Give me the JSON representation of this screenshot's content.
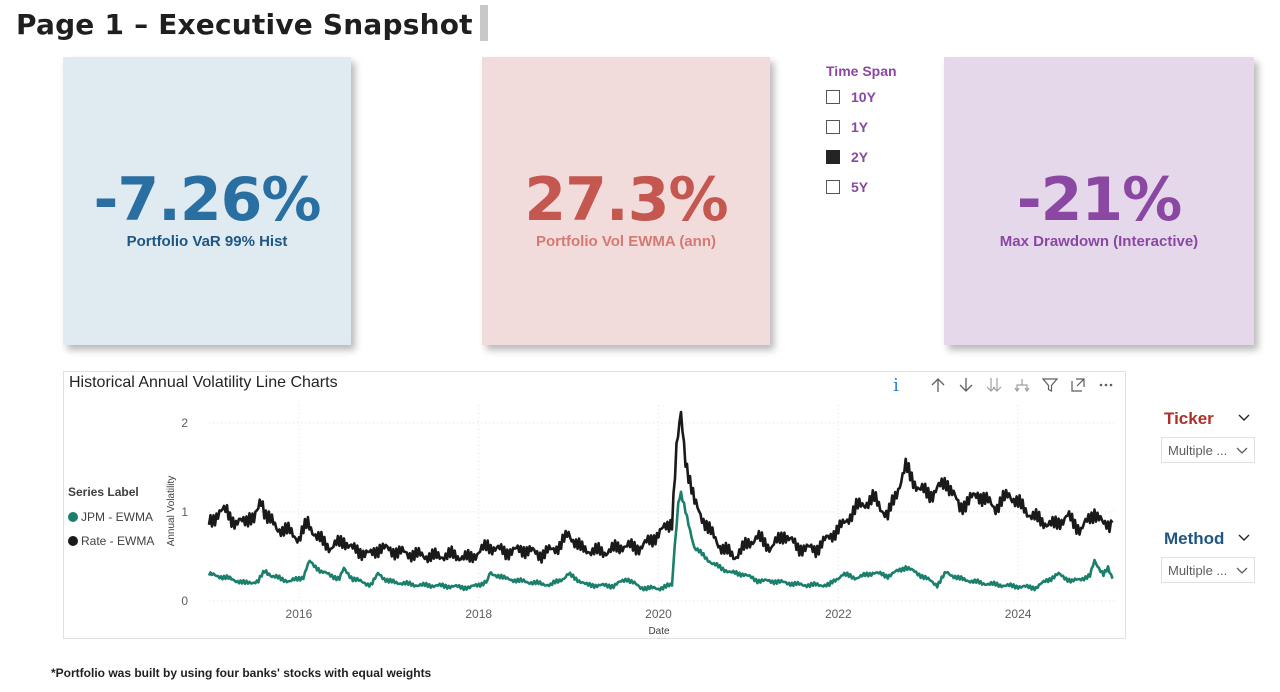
{
  "page": {
    "title": "Page 1 – Executive Snapshot",
    "footnote": "*Portfolio was built by using four banks' stocks with equal weights"
  },
  "kpis": [
    {
      "value": "-7.26%",
      "label": "Portfolio VaR 99% Hist",
      "color": "#2a6fa1",
      "bg": "#dfeaf1"
    },
    {
      "value": "27.3%",
      "label": "Portfolio Vol EWMA (ann)",
      "color": "#c4574f",
      "bg": "#f1dcdb"
    },
    {
      "value": "-21%",
      "label": "Max Drawdown (Interactive)",
      "color": "#8a48a3",
      "bg": "#e5d8eb"
    }
  ],
  "time_span": {
    "title": "Time Span",
    "options": [
      {
        "label": "10Y",
        "checked": false
      },
      {
        "label": "1Y",
        "checked": false
      },
      {
        "label": "2Y",
        "checked": true
      },
      {
        "label": "5Y",
        "checked": false
      }
    ]
  },
  "chart_header": {
    "title": "Historical Annual Volatility Line Charts",
    "icons": [
      "info-icon",
      "drill-up-icon",
      "drill-down-icon",
      "expand-next-level-icon",
      "expand-hierarchy-icon",
      "filter-icon",
      "focus-mode-icon",
      "more-options-icon"
    ]
  },
  "chart_data": {
    "type": "line",
    "title": "",
    "xlabel": "Date",
    "ylabel": "Annual Volatility",
    "x_ticks": [
      "2016",
      "2018",
      "2020",
      "2022",
      "2024"
    ],
    "y_ticks": [
      "0",
      "1",
      "2"
    ],
    "xlim": [
      2015.0,
      2025.1
    ],
    "ylim": [
      0,
      2.2
    ],
    "grid": true,
    "legend": {
      "title": "Series Label",
      "position": "left"
    },
    "series": [
      {
        "name": "JPM - EWMA",
        "color": "#1a7f6b",
        "points": [
          [
            2015.0,
            0.3
          ],
          [
            2015.2,
            0.26
          ],
          [
            2015.4,
            0.2
          ],
          [
            2015.55,
            0.22
          ],
          [
            2015.62,
            0.35
          ],
          [
            2015.7,
            0.28
          ],
          [
            2015.9,
            0.22
          ],
          [
            2016.05,
            0.27
          ],
          [
            2016.12,
            0.45
          ],
          [
            2016.25,
            0.33
          ],
          [
            2016.45,
            0.25
          ],
          [
            2016.5,
            0.36
          ],
          [
            2016.6,
            0.25
          ],
          [
            2016.8,
            0.18
          ],
          [
            2016.88,
            0.3
          ],
          [
            2017.0,
            0.22
          ],
          [
            2017.3,
            0.18
          ],
          [
            2017.6,
            0.17
          ],
          [
            2017.9,
            0.15
          ],
          [
            2018.1,
            0.22
          ],
          [
            2018.12,
            0.32
          ],
          [
            2018.3,
            0.25
          ],
          [
            2018.5,
            0.22
          ],
          [
            2018.8,
            0.18
          ],
          [
            2018.95,
            0.26
          ],
          [
            2019.0,
            0.3
          ],
          [
            2019.2,
            0.18
          ],
          [
            2019.5,
            0.17
          ],
          [
            2019.65,
            0.25
          ],
          [
            2019.8,
            0.15
          ],
          [
            2020.0,
            0.14
          ],
          [
            2020.15,
            0.18
          ],
          [
            2020.18,
            0.6
          ],
          [
            2020.22,
            1.1
          ],
          [
            2020.25,
            1.2
          ],
          [
            2020.3,
            1.0
          ],
          [
            2020.4,
            0.6
          ],
          [
            2020.6,
            0.42
          ],
          [
            2020.8,
            0.32
          ],
          [
            2020.95,
            0.3
          ],
          [
            2021.1,
            0.23
          ],
          [
            2021.3,
            0.22
          ],
          [
            2021.6,
            0.18
          ],
          [
            2021.9,
            0.18
          ],
          [
            2022.05,
            0.3
          ],
          [
            2022.2,
            0.26
          ],
          [
            2022.4,
            0.32
          ],
          [
            2022.55,
            0.28
          ],
          [
            2022.75,
            0.38
          ],
          [
            2022.9,
            0.3
          ],
          [
            2023.1,
            0.18
          ],
          [
            2023.2,
            0.32
          ],
          [
            2023.35,
            0.25
          ],
          [
            2023.6,
            0.2
          ],
          [
            2023.9,
            0.17
          ],
          [
            2024.2,
            0.15
          ],
          [
            2024.3,
            0.22
          ],
          [
            2024.45,
            0.3
          ],
          [
            2024.6,
            0.22
          ],
          [
            2024.8,
            0.28
          ],
          [
            2024.85,
            0.45
          ],
          [
            2024.95,
            0.3
          ],
          [
            2025.0,
            0.36
          ],
          [
            2025.05,
            0.25
          ]
        ]
      },
      {
        "name": "Rate - EWMA",
        "color": "#1a1a1a",
        "points": [
          [
            2015.0,
            0.88
          ],
          [
            2015.1,
            0.98
          ],
          [
            2015.2,
            1.02
          ],
          [
            2015.3,
            0.85
          ],
          [
            2015.45,
            0.95
          ],
          [
            2015.5,
            0.9
          ],
          [
            2015.58,
            1.1
          ],
          [
            2015.65,
            0.95
          ],
          [
            2015.75,
            0.82
          ],
          [
            2015.9,
            0.78
          ],
          [
            2016.0,
            0.7
          ],
          [
            2016.1,
            0.88
          ],
          [
            2016.2,
            0.72
          ],
          [
            2016.35,
            0.6
          ],
          [
            2016.5,
            0.68
          ],
          [
            2016.6,
            0.58
          ],
          [
            2016.8,
            0.52
          ],
          [
            2016.9,
            0.6
          ],
          [
            2017.1,
            0.55
          ],
          [
            2017.3,
            0.52
          ],
          [
            2017.5,
            0.5
          ],
          [
            2017.7,
            0.52
          ],
          [
            2017.9,
            0.48
          ],
          [
            2018.1,
            0.62
          ],
          [
            2018.3,
            0.55
          ],
          [
            2018.5,
            0.58
          ],
          [
            2018.7,
            0.52
          ],
          [
            2018.9,
            0.62
          ],
          [
            2019.0,
            0.75
          ],
          [
            2019.15,
            0.58
          ],
          [
            2019.4,
            0.55
          ],
          [
            2019.6,
            0.62
          ],
          [
            2019.8,
            0.6
          ],
          [
            2020.0,
            0.75
          ],
          [
            2020.1,
            0.85
          ],
          [
            2020.15,
            0.9
          ],
          [
            2020.2,
            1.7
          ],
          [
            2020.25,
            2.08
          ],
          [
            2020.3,
            1.6
          ],
          [
            2020.4,
            1.1
          ],
          [
            2020.55,
            0.82
          ],
          [
            2020.7,
            0.6
          ],
          [
            2020.85,
            0.5
          ],
          [
            2021.0,
            0.65
          ],
          [
            2021.1,
            0.72
          ],
          [
            2021.25,
            0.6
          ],
          [
            2021.4,
            0.75
          ],
          [
            2021.55,
            0.6
          ],
          [
            2021.75,
            0.58
          ],
          [
            2021.9,
            0.72
          ],
          [
            2022.05,
            0.85
          ],
          [
            2022.2,
            1.05
          ],
          [
            2022.4,
            1.15
          ],
          [
            2022.55,
            0.95
          ],
          [
            2022.75,
            1.5
          ],
          [
            2022.9,
            1.25
          ],
          [
            2023.05,
            1.2
          ],
          [
            2023.2,
            1.35
          ],
          [
            2023.35,
            1.05
          ],
          [
            2023.55,
            1.2
          ],
          [
            2023.75,
            1.05
          ],
          [
            2023.9,
            1.2
          ],
          [
            2024.0,
            1.1
          ],
          [
            2024.1,
            1.0
          ],
          [
            2024.25,
            0.9
          ],
          [
            2024.4,
            0.85
          ],
          [
            2024.55,
            0.95
          ],
          [
            2024.7,
            0.8
          ],
          [
            2024.85,
            1.0
          ],
          [
            2024.95,
            0.85
          ],
          [
            2025.05,
            0.88
          ]
        ]
      }
    ]
  },
  "ticker_slicer": {
    "title": "Ticker",
    "value": "Multiple ...",
    "title_color": "#b03027"
  },
  "method_slicer": {
    "title": "Method",
    "value": "Multiple ...",
    "title_color": "#1f5684"
  }
}
